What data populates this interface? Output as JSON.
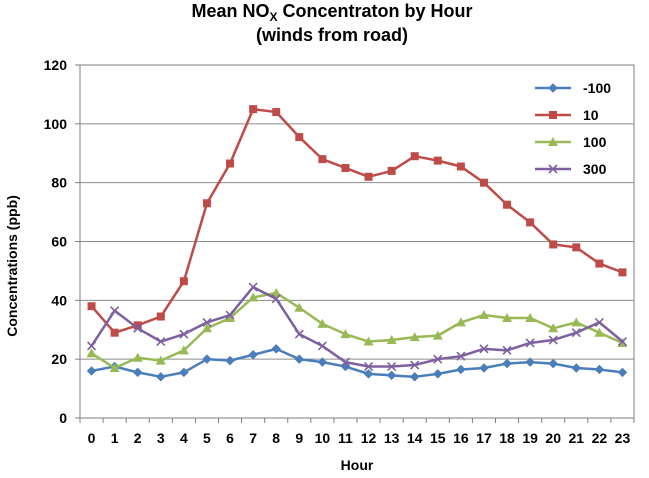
{
  "chart_data": {
    "type": "line",
    "title": {
      "prefix": "Mean NO",
      "subscript": "X",
      "suffix": " Concentraton by Hour",
      "line2": "(winds from road)"
    },
    "xlabel": "Hour",
    "ylabel": "Concentrations (ppb)",
    "ylim": [
      0,
      120
    ],
    "yticks": [
      0,
      20,
      40,
      60,
      80,
      100,
      120
    ],
    "grid": true,
    "legend_position": "top-right",
    "categories": [
      "0",
      "1",
      "2",
      "3",
      "4",
      "5",
      "6",
      "7",
      "8",
      "9",
      "10",
      "11",
      "12",
      "13",
      "14",
      "15",
      "16",
      "17",
      "18",
      "19",
      "20",
      "21",
      "22",
      "23"
    ],
    "series": [
      {
        "name": "-100",
        "color": "#4a7ebb",
        "marker": "diamond",
        "values": [
          16.0,
          17.5,
          15.5,
          14.0,
          15.5,
          20.0,
          19.5,
          21.5,
          23.5,
          20.0,
          19.0,
          17.5,
          15.0,
          14.5,
          14.0,
          15.0,
          16.5,
          17.0,
          18.5,
          19.0,
          18.5,
          17.0,
          16.5,
          15.5
        ]
      },
      {
        "name": "10",
        "color": "#be4b48",
        "marker": "square",
        "values": [
          38.0,
          29.0,
          31.5,
          34.5,
          46.5,
          73.0,
          86.5,
          105.0,
          104.0,
          95.5,
          88.0,
          85.0,
          82.0,
          84.0,
          89.0,
          87.5,
          85.5,
          80.0,
          72.5,
          66.5,
          59.0,
          58.0,
          52.5,
          49.5
        ]
      },
      {
        "name": "100",
        "color": "#98b954",
        "marker": "triangle",
        "values": [
          22.0,
          17.0,
          20.5,
          19.5,
          23.0,
          30.5,
          34.0,
          41.0,
          42.5,
          37.5,
          32.0,
          28.5,
          26.0,
          26.5,
          27.5,
          28.0,
          32.5,
          35.0,
          34.0,
          34.0,
          30.5,
          32.5,
          29.0,
          25.5
        ]
      },
      {
        "name": "300",
        "color": "#7d60a0",
        "marker": "x",
        "values": [
          24.5,
          36.5,
          30.5,
          26.0,
          28.5,
          32.5,
          35.0,
          44.5,
          40.5,
          28.5,
          24.5,
          19.0,
          17.5,
          17.5,
          18.0,
          20.0,
          21.0,
          23.5,
          23.0,
          25.5,
          26.5,
          29.0,
          32.5,
          26.0
        ]
      }
    ]
  }
}
